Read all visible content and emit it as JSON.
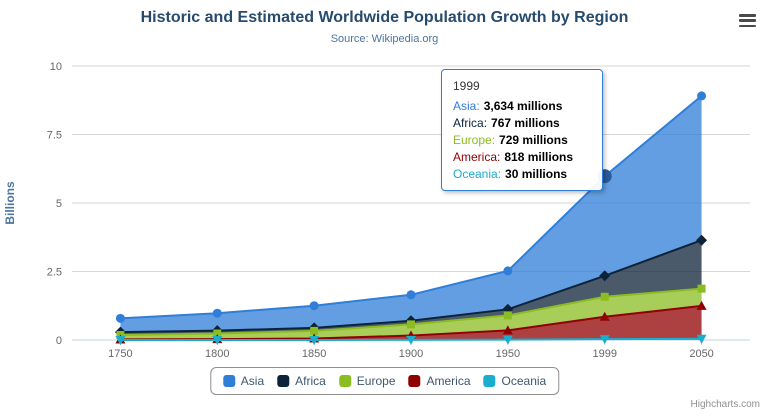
{
  "chart": {
    "title": "Historic and Estimated Worldwide Population Growth by Region",
    "subtitle": "Source: Wikipedia.org",
    "credits": "Highcharts.com"
  },
  "chart_data": {
    "type": "area",
    "stacking": "normal",
    "title": "Historic and Estimated Worldwide Population Growth by Region",
    "subtitle": "Source: Wikipedia.org",
    "categories": [
      "1750",
      "1800",
      "1850",
      "1900",
      "1950",
      "1999",
      "2050"
    ],
    "xlabel": "",
    "ylabel": "Billions",
    "ylim": [
      0,
      10
    ],
    "yticks": [
      0,
      2.5,
      5,
      7.5,
      10
    ],
    "unit": "millions",
    "grid": true,
    "legend_position": "bottom",
    "series": [
      {
        "name": "Asia",
        "color": "#2f7ed8",
        "marker": "circle",
        "values": [
          502,
          635,
          809,
          947,
          1402,
          3634,
          5268
        ]
      },
      {
        "name": "Africa",
        "color": "#0d233a",
        "marker": "diamond",
        "values": [
          106,
          107,
          111,
          133,
          221,
          767,
          1766
        ]
      },
      {
        "name": "Europe",
        "color": "#8bbc21",
        "marker": "square",
        "values": [
          163,
          203,
          276,
          408,
          547,
          729,
          628
        ]
      },
      {
        "name": "America",
        "color": "#910000",
        "marker": "triangle",
        "values": [
          18,
          31,
          54,
          156,
          339,
          818,
          1201
        ]
      },
      {
        "name": "Oceania",
        "color": "#1aadce",
        "marker": "triangle-down",
        "values": [
          2,
          2,
          2,
          6,
          13,
          30,
          46
        ]
      }
    ]
  },
  "tooltip": {
    "header": "1999",
    "border_color": "#2f7ed8",
    "hover_point": {
      "category": "1999",
      "series": "Asia"
    },
    "rows": [
      {
        "name": "Asia",
        "value": "3,634 millions"
      },
      {
        "name": "Africa",
        "value": "767 millions"
      },
      {
        "name": "Europe",
        "value": "729 millions"
      },
      {
        "name": "America",
        "value": "818 millions"
      },
      {
        "name": "Oceania",
        "value": "30 millions"
      }
    ]
  },
  "icons": {
    "context_menu": "hamburger-menu-icon"
  }
}
